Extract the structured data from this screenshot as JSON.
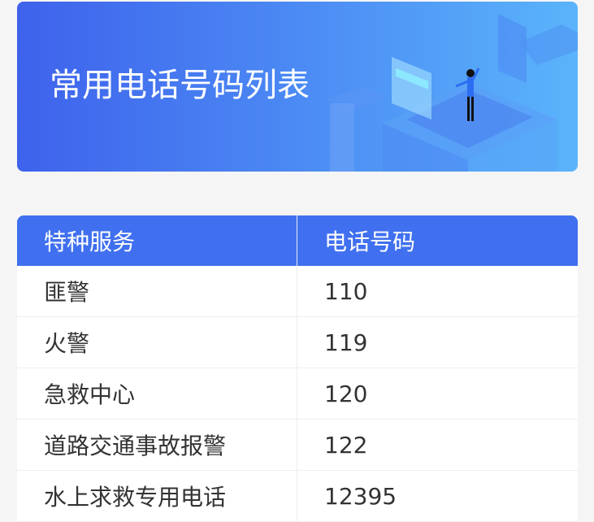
{
  "banner": {
    "title": "常用电话号码列表"
  },
  "table": {
    "headers": [
      "特种服务",
      "电话号码"
    ],
    "rows": [
      {
        "service": "匪警",
        "phone": "110"
      },
      {
        "service": "火警",
        "phone": "119"
      },
      {
        "service": "急救中心",
        "phone": "120"
      },
      {
        "service": "道路交通事故报警",
        "phone": "122"
      },
      {
        "service": "水上求救专用电话",
        "phone": "12395"
      }
    ]
  },
  "colors": {
    "header": "#4070ef",
    "banner_start": "#3e62ec",
    "banner_end": "#5ab4fb"
  }
}
